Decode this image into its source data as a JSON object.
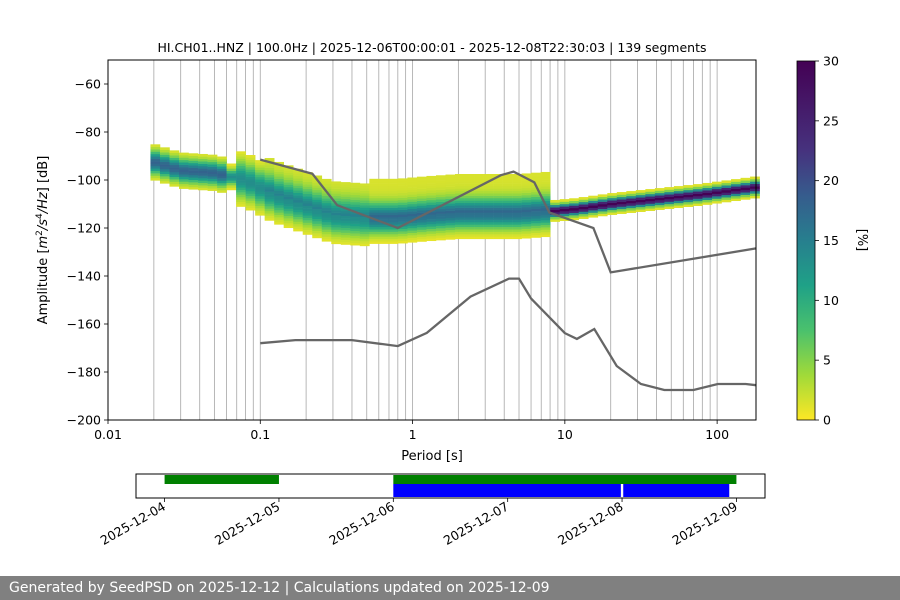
{
  "footer": {
    "text": "Generated by SeedPSD on 2025-12-12 | Calculations updated on 2025-12-09"
  },
  "chart_data": [
    {
      "type": "heatmap",
      "title": "HI.CH01..HNZ | 100.0Hz | 2025-12-06T00:00:01 - 2025-12-08T22:30:03 | 139 segments",
      "xlabel": "Period [s]",
      "ylabel_prefix": "Amplitude [",
      "ylabel_math": [
        "m",
        "2",
        "/s",
        "4",
        "/Hz",
        "] [dB]"
      ],
      "x_scale": "log",
      "xlim": [
        0.01,
        180
      ],
      "ylim": [
        -200,
        -50
      ],
      "x_ticks": [
        0.01,
        0.1,
        1,
        10,
        100
      ],
      "x_tick_labels": [
        "0.01",
        "0.1",
        "1",
        "10",
        "100"
      ],
      "y_ticks": [
        -200,
        -180,
        -160,
        -140,
        -120,
        -100,
        -80,
        -60
      ],
      "y_tick_labels": [
        "−200",
        "−180",
        "−160",
        "−140",
        "−120",
        "−100",
        "−80",
        "−60"
      ],
      "grid": "vertical, log minor",
      "colorbar": {
        "label": "[%]",
        "range": [
          0,
          30
        ],
        "ticks": [
          0,
          5,
          10,
          15,
          20,
          25,
          30
        ],
        "tick_labels": [
          "0",
          "5",
          "10",
          "15",
          "20",
          "25",
          "30"
        ],
        "colormap": "viridis_r"
      },
      "density_ridge": {
        "x": [
          0.019,
          0.03,
          0.05,
          0.08,
          0.12,
          0.2,
          0.3,
          0.5,
          0.8,
          1.2,
          2,
          3,
          5,
          8,
          12,
          20,
          40,
          80,
          180
        ],
        "y": [
          -92,
          -96,
          -97,
          -100,
          -106,
          -111,
          -115,
          -116,
          -116,
          -115,
          -114,
          -114,
          -114,
          -113,
          -112,
          -110,
          -108,
          -106,
          -103
        ]
      },
      "noise_model_high": {
        "x": [
          0.1,
          0.22,
          0.32,
          0.8,
          3.8,
          4.6,
          6.3,
          7.9,
          15.4,
          20,
          180
        ],
        "y": [
          -91.5,
          -97.4,
          -110.5,
          -120,
          -98,
          -96.5,
          -101,
          -113.5,
          -120,
          -138.5,
          -128.5
        ]
      },
      "noise_model_low": {
        "x": [
          0.1,
          0.17,
          0.4,
          0.8,
          1.24,
          2.4,
          4.3,
          5,
          6,
          10,
          12,
          15.6,
          21.9,
          31.6,
          45,
          70,
          101,
          154,
          180
        ],
        "y": [
          -168,
          -166.7,
          -166.7,
          -169.2,
          -163.7,
          -148.6,
          -141.1,
          -141.1,
          -149.4,
          -163.8,
          -166.2,
          -162.1,
          -177.5,
          -185,
          -187.5,
          -187.5,
          -185,
          -185,
          -185.5
        ]
      }
    },
    {
      "type": "timeline",
      "x_tick_labels": [
        "2025-12-04",
        "2025-12-05",
        "2025-12-06",
        "2025-12-07",
        "2025-12-08",
        "2025-12-09"
      ],
      "xlim": [
        "2025-12-03T18:00",
        "2025-12-09T06:00"
      ],
      "coverage_color": "#008000",
      "coverage": [
        [
          "2025-12-04T00:00",
          "2025-12-05T00:00"
        ],
        [
          "2025-12-06T00:00",
          "2025-12-09T00:00"
        ]
      ],
      "used_color": "#0000ff",
      "used": [
        [
          "2025-12-06T00:00",
          "2025-12-07T23:45"
        ],
        [
          "2025-12-08T00:15",
          "2025-12-08T22:30"
        ]
      ]
    }
  ]
}
